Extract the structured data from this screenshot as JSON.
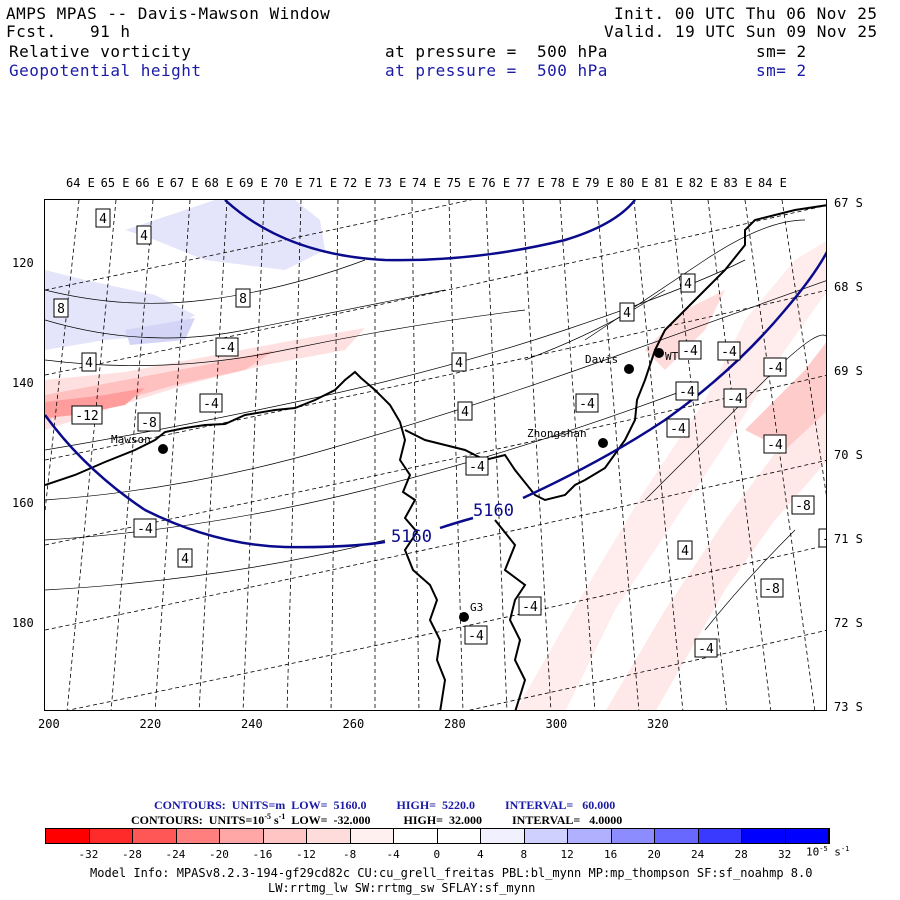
{
  "header": {
    "title": "AMPS MPAS -- Davis-Mawson Window",
    "fcst_label": "Fcst.",
    "fcst_value": "91 h",
    "init": "Init. 00 UTC Thu 06 Nov 25",
    "valid": "Valid. 19 UTC Sun 09 Nov 25",
    "field1_name": "Relative vorticity",
    "field1_pressure": "at pressure =  500 hPa",
    "field1_sm": "sm= 2",
    "field2_name": "Geopotential height",
    "field2_pressure": "at pressure =  500 hPa",
    "field2_sm": "sm= 2"
  },
  "map": {
    "longitude_labels": [
      "64 E",
      "65 E",
      "66 E",
      "67 E",
      "68 E",
      "69 E",
      "70 E",
      "71 E",
      "72 E",
      "73 E",
      "74 E",
      "75 E",
      "76 E",
      "77 E",
      "78 E",
      "79 E",
      "80 E",
      "81 E",
      "82 E",
      "83 E",
      "84 E"
    ],
    "latitude_labels": [
      "67 S",
      "68 S",
      "69 S",
      "70 S",
      "71 S",
      "72 S",
      "73 S"
    ],
    "y_axis_labels": [
      "120",
      "140",
      "160",
      "180"
    ],
    "x_axis_labels": [
      "200",
      "220",
      "240",
      "260",
      "280",
      "300",
      "320"
    ],
    "stations": [
      "Mawson",
      "Davis",
      "Zhongshan",
      "G3",
      "WT"
    ],
    "height_contour_labels": [
      "5160",
      "5160"
    ],
    "vorticity_labels": [
      "4",
      "4",
      "8",
      "8",
      "4",
      "-4",
      "-4",
      "-12",
      "-8",
      "4",
      "4",
      "-4",
      "-4",
      "4",
      "4",
      "-4",
      "-4",
      "-4",
      "-4",
      "-4",
      "-4",
      "-4",
      "-8",
      "-4",
      "-8",
      "-4",
      "-4",
      "-4",
      "-4",
      "4",
      "4"
    ],
    "colors": {
      "height_contour": "#0a0a8c",
      "station_dot": "#000000"
    }
  },
  "legend": {
    "contours1": "CONTOURS:  UNITS=m  LOW=  5160.0          HIGH=  5220.0          INTERVAL=   60.000",
    "contours2_prefix": "CONTOURS:  UNITS=10",
    "contours2_sup": "-5",
    "contours2_s": " s",
    "contours2_sup2": "-1",
    "contours2_rest": "  LOW=  -32.000           HIGH=  32.000          INTERVAL=   4.0000",
    "colorbar_ticks": [
      "-32",
      "-28",
      "-24",
      "-20",
      "-16",
      "-12",
      "-8",
      "-4",
      "0",
      "4",
      "8",
      "12",
      "16",
      "20",
      "24",
      "28",
      "32"
    ],
    "colorbar_unit": "10",
    "colorbar_unit_sup": "-5",
    "colorbar_unit_s": " s",
    "colorbar_unit_sup2": "-1",
    "colorbar_colors": [
      "#ff0000",
      "#ff2a2a",
      "#ff5656",
      "#ff7e7e",
      "#ffa6a6",
      "#ffc4c4",
      "#ffdcdc",
      "#fff0f0",
      "#ffffff",
      "#ffffff",
      "#f0f0ff",
      "#d0d0ff",
      "#b0b0ff",
      "#8c8cff",
      "#6868ff",
      "#3a3aff",
      "#0000ff",
      "#0000ff"
    ]
  },
  "model_info": {
    "line1": "Model Info: MPASv8.2.3-194-gf29cd82c CU:cu_grell_freitas PBL:bl_mynn MP:mp_thompson SF:sf_noahmp 8.0",
    "line2": "LW:rrtmg_lw SW:rrtmg_sw SFLAY:sf_mynn"
  }
}
